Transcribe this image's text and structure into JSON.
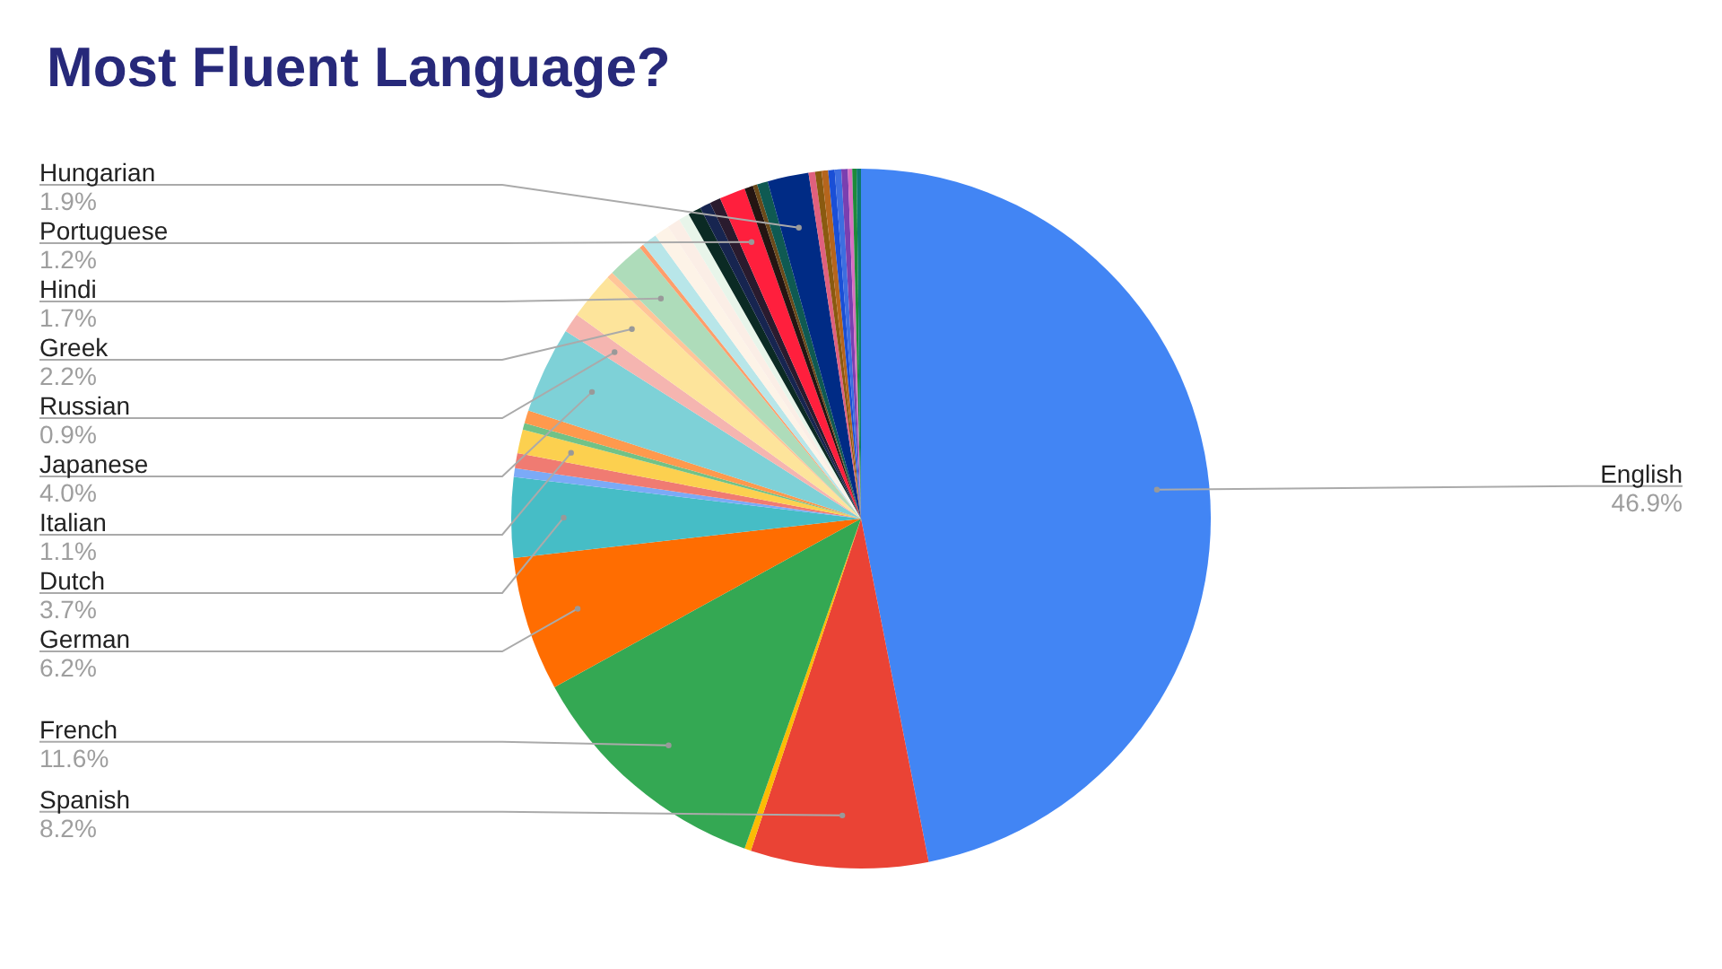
{
  "chart_data": {
    "type": "pie",
    "title": "Most Fluent Language?",
    "categories": [
      "English",
      "Spanish",
      null,
      "French",
      "German",
      "Dutch",
      null,
      null,
      "Italian",
      null,
      null,
      "Japanese",
      "Russian",
      "Greek",
      null,
      "Hindi",
      null,
      null,
      null,
      null,
      null,
      null,
      null,
      null,
      "Portuguese",
      null,
      null,
      null,
      "Hungarian",
      null,
      null,
      null,
      null,
      null,
      null,
      null,
      null,
      null
    ],
    "values": [
      46.9,
      8.2,
      0.3,
      11.6,
      6.2,
      3.7,
      0.4,
      0.7,
      1.1,
      0.3,
      0.6,
      4.0,
      0.9,
      2.2,
      0.3,
      1.7,
      0.2,
      0.7,
      0.7,
      0.6,
      0.5,
      0.6,
      0.5,
      0.5,
      1.2,
      0.4,
      0.2,
      0.5,
      1.9,
      0.3,
      0.3,
      0.3,
      0.3,
      0.3,
      0.3,
      0.2,
      0.2,
      0.2
    ],
    "value_labels": [
      "46.9%",
      "8.2%",
      null,
      "11.6%",
      "6.2%",
      "3.7%",
      null,
      null,
      "1.1%",
      null,
      null,
      "4.0%",
      "0.9%",
      "2.2%",
      null,
      "1.7%",
      null,
      null,
      null,
      null,
      null,
      null,
      null,
      null,
      "1.2%",
      null,
      null,
      null,
      "1.9%",
      null,
      null,
      null,
      null,
      null,
      null,
      null,
      null,
      null
    ],
    "colors": [
      "#4285f4",
      "#ea4335",
      "#fbbc04",
      "#34a853",
      "#ff6d01",
      "#46bdc6",
      "#7baaf7",
      "#f07b72",
      "#fcd04f",
      "#71c287",
      "#ff994d",
      "#7ed1d7",
      "#f5b5b0",
      "#fde49b",
      "#ffc599",
      "#aedcba",
      "#ff9e6b",
      "#b8e6e9",
      "#fdf3e7",
      "#fbeee6",
      "#e8f5ea",
      "#0b2a24",
      "#172550",
      "#2a1b2e",
      "#ff1f3d",
      "#241512",
      "#6b4a1a",
      "#0f5a52",
      "#002b85",
      "#e0607e",
      "#8a5a10",
      "#b5651d",
      "#1a4fd6",
      "#3d6ee0",
      "#7a3fb0",
      "#d86fc0",
      "#1e8a3a",
      "#0e7a70"
    ],
    "legend": false
  }
}
